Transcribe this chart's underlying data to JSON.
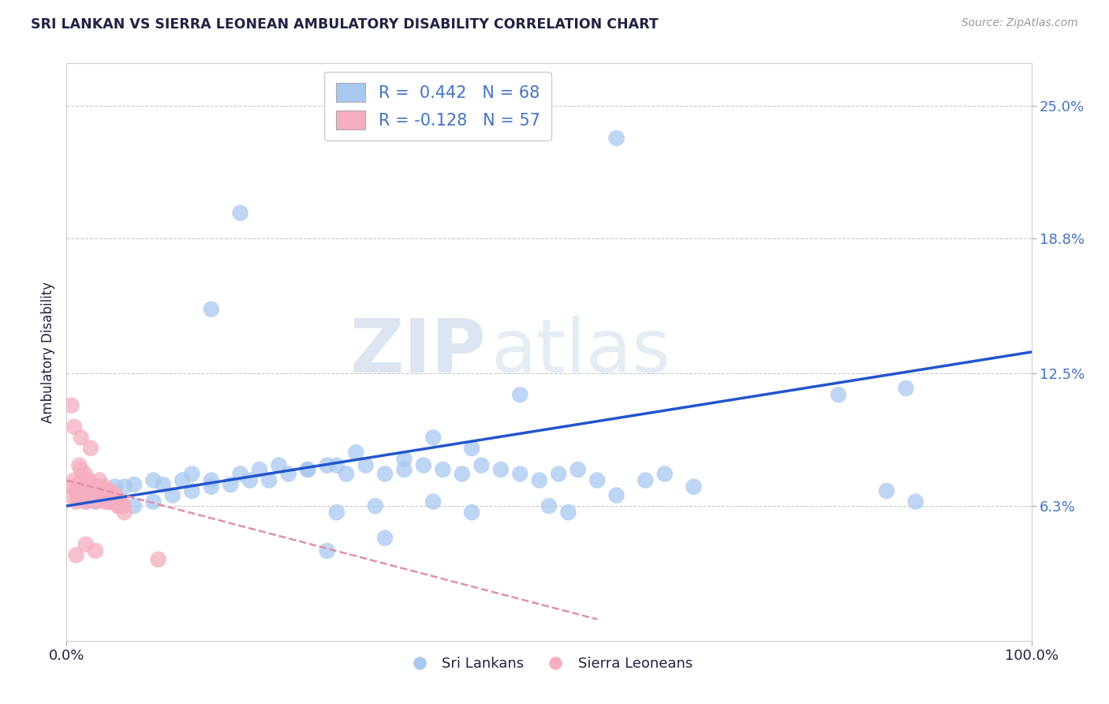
{
  "title": "SRI LANKAN VS SIERRA LEONEAN AMBULATORY DISABILITY CORRELATION CHART",
  "source": "Source: ZipAtlas.com",
  "ylabel": "Ambulatory Disability",
  "ytick_labels": [
    "6.3%",
    "12.5%",
    "18.8%",
    "25.0%"
  ],
  "ytick_values": [
    0.063,
    0.125,
    0.188,
    0.25
  ],
  "xlim": [
    0.0,
    1.0
  ],
  "ylim": [
    0.0,
    0.27
  ],
  "watermark_zip": "ZIP",
  "watermark_atlas": "atlas",
  "legend_line1": "R =  0.442   N = 68",
  "legend_line2": "R = -0.128   N = 57",
  "sri_color": "#a8c8f0",
  "sierra_color": "#f5aec0",
  "sri_line_color": "#2255cc",
  "sierra_line_color": "#e090a8",
  "background_color": "#ffffff",
  "grid_color": "#c8c8c8",
  "title_color": "#222244",
  "label_color": "#4472c4",
  "sri_R": 0.442,
  "sierra_R": -0.128,
  "sri_N": 68,
  "sierra_N": 57,
  "sri_line_x0": 0.0,
  "sri_line_y0": 0.063,
  "sri_line_x1": 1.0,
  "sri_line_y1": 0.135,
  "sierra_line_x0": 0.0,
  "sierra_line_y0": 0.075,
  "sierra_line_x1": 0.55,
  "sierra_line_y1": 0.01,
  "sri_scatter_x": [
    0.57,
    0.18,
    0.15,
    0.47,
    0.38,
    0.42,
    0.35,
    0.28,
    0.3,
    0.25,
    0.22,
    0.2,
    0.18,
    0.15,
    0.13,
    0.12,
    0.1,
    0.09,
    0.07,
    0.06,
    0.05,
    0.04,
    0.03,
    0.02,
    0.02,
    0.03,
    0.05,
    0.07,
    0.09,
    0.11,
    0.13,
    0.15,
    0.17,
    0.19,
    0.21,
    0.23,
    0.25,
    0.27,
    0.29,
    0.31,
    0.33,
    0.35,
    0.37,
    0.39,
    0.41,
    0.43,
    0.45,
    0.47,
    0.49,
    0.51,
    0.53,
    0.55,
    0.57,
    0.6,
    0.62,
    0.65,
    0.8,
    0.85,
    0.87,
    0.88,
    0.32,
    0.28,
    0.38,
    0.42,
    0.5,
    0.52,
    0.27,
    0.33
  ],
  "sri_scatter_y": [
    0.235,
    0.2,
    0.155,
    0.115,
    0.095,
    0.09,
    0.085,
    0.082,
    0.088,
    0.08,
    0.082,
    0.08,
    0.078,
    0.075,
    0.078,
    0.075,
    0.073,
    0.075,
    0.073,
    0.072,
    0.072,
    0.07,
    0.068,
    0.068,
    0.065,
    0.065,
    0.065,
    0.063,
    0.065,
    0.068,
    0.07,
    0.072,
    0.073,
    0.075,
    0.075,
    0.078,
    0.08,
    0.082,
    0.078,
    0.082,
    0.078,
    0.08,
    0.082,
    0.08,
    0.078,
    0.082,
    0.08,
    0.078,
    0.075,
    0.078,
    0.08,
    0.075,
    0.068,
    0.075,
    0.078,
    0.072,
    0.115,
    0.07,
    0.118,
    0.065,
    0.063,
    0.06,
    0.065,
    0.06,
    0.063,
    0.06,
    0.042,
    0.048
  ],
  "sierra_scatter_x": [
    0.005,
    0.007,
    0.008,
    0.01,
    0.01,
    0.012,
    0.013,
    0.015,
    0.016,
    0.018,
    0.019,
    0.02,
    0.02,
    0.022,
    0.023,
    0.025,
    0.025,
    0.027,
    0.028,
    0.028,
    0.03,
    0.031,
    0.032,
    0.033,
    0.034,
    0.035,
    0.037,
    0.038,
    0.039,
    0.04,
    0.041,
    0.042,
    0.043,
    0.044,
    0.045,
    0.046,
    0.047,
    0.048,
    0.049,
    0.05,
    0.051,
    0.052,
    0.053,
    0.054,
    0.055,
    0.057,
    0.058,
    0.059,
    0.06,
    0.005,
    0.008,
    0.015,
    0.025,
    0.095,
    0.01,
    0.02,
    0.03
  ],
  "sierra_scatter_y": [
    0.068,
    0.072,
    0.075,
    0.07,
    0.065,
    0.068,
    0.082,
    0.08,
    0.075,
    0.072,
    0.078,
    0.068,
    0.065,
    0.07,
    0.075,
    0.072,
    0.068,
    0.072,
    0.07,
    0.068,
    0.065,
    0.07,
    0.072,
    0.068,
    0.075,
    0.072,
    0.07,
    0.068,
    0.072,
    0.065,
    0.068,
    0.07,
    0.065,
    0.068,
    0.065,
    0.07,
    0.068,
    0.065,
    0.068,
    0.065,
    0.068,
    0.065,
    0.063,
    0.065,
    0.063,
    0.065,
    0.063,
    0.063,
    0.06,
    0.11,
    0.1,
    0.095,
    0.09,
    0.038,
    0.04,
    0.045,
    0.042
  ]
}
